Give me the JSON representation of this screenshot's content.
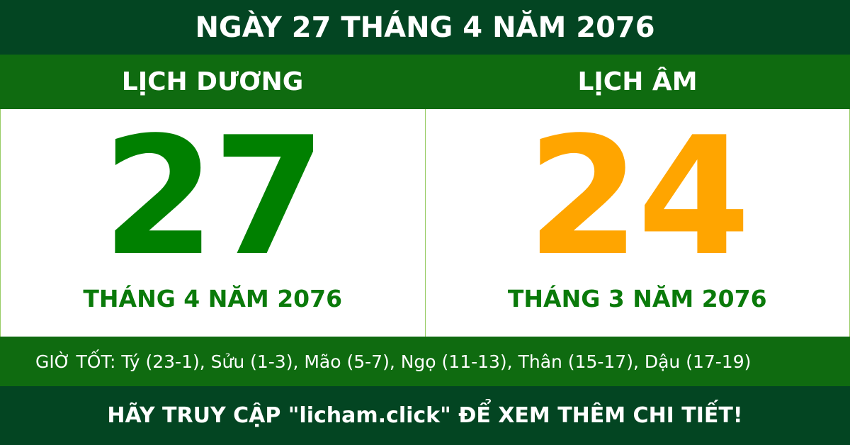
{
  "title": "NGÀY 27 THÁNG 4 NĂM 2076",
  "solar": {
    "heading": "LỊCH DƯƠNG",
    "day": "27",
    "month_year": "THÁNG 4 NĂM 2076",
    "color": "#008000"
  },
  "lunar": {
    "heading": "LỊCH ÂM",
    "day": "24",
    "month_year": "THÁNG 3 NĂM 2076",
    "color": "#ffa500"
  },
  "good_hours": "GIỜ TỐT: Tý (23-1), Sửu (1-3), Mão (5-7), Ngọ (11-13), Thân (15-17), Dậu (17-19)",
  "footer": "HÃY TRUY CẬP \"licham.click\" ĐỂ XEM THÊM CHI TIẾT!",
  "colors": {
    "dark_green": "#034522",
    "band_green": "#0f6b10"
  }
}
